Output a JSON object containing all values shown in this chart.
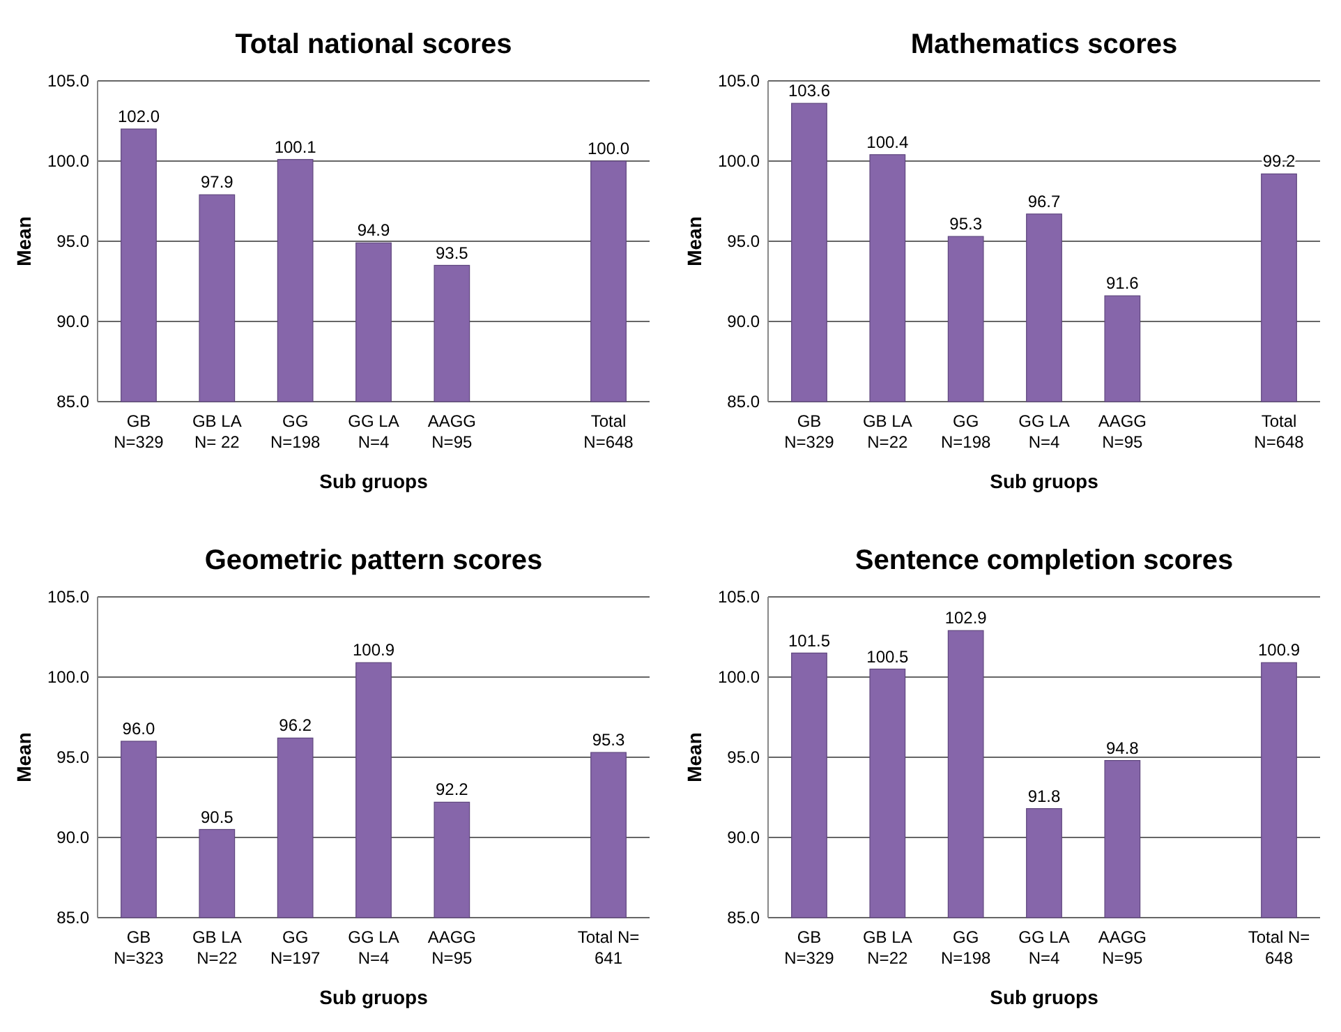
{
  "chart_data": [
    {
      "type": "bar",
      "title": "Total national scores",
      "xlabel": "Sub gruops",
      "ylabel": "Mean",
      "categories": [
        "GB\nN=329",
        "GB LA\nN= 22",
        "GG\nN=198",
        "GG LA\nN=4",
        "AAGG\nN=95",
        null,
        "Total\nN=648"
      ],
      "values": [
        102.0,
        97.9,
        100.1,
        94.9,
        93.5,
        null,
        100.0
      ],
      "value_labels": [
        "102.0",
        "97.9",
        "100.1",
        "94.9",
        "93.5",
        null,
        "100.0"
      ],
      "color": "#8666aa",
      "ylim": [
        85,
        105
      ],
      "yticks": [
        {
          "value": 85,
          "label": "85.0"
        },
        {
          "value": 90,
          "label": "90.0"
        },
        {
          "value": 95,
          "label": "95.0"
        },
        {
          "value": 100,
          "label": "100.0"
        },
        {
          "value": 105,
          "label": "105.0"
        }
      ],
      "grid": "y"
    },
    {
      "type": "bar",
      "title": "Mathematics scores",
      "xlabel": "Sub gruops",
      "ylabel": "Mean",
      "categories": [
        "GB\nN=329",
        "GB LA\nN=22",
        "GG\nN=198",
        "GG  LA\nN=4",
        "AAGG\nN=95",
        null,
        "Total\nN=648"
      ],
      "values": [
        103.6,
        100.4,
        95.3,
        96.7,
        91.6,
        null,
        99.2
      ],
      "value_labels": [
        "103.6",
        "100.4",
        "95.3",
        "96.7",
        "91.6",
        null,
        "99.2"
      ],
      "color": "#8666aa",
      "ylim": [
        85,
        105
      ],
      "yticks": [
        {
          "value": 85,
          "label": "85.0"
        },
        {
          "value": 90,
          "label": "90.0"
        },
        {
          "value": 95,
          "label": "95.0"
        },
        {
          "value": 100,
          "label": "100.0"
        },
        {
          "value": 105,
          "label": "105.0"
        }
      ],
      "grid": "y"
    },
    {
      "type": "bar",
      "title": "Geometric pattern scores",
      "xlabel": "Sub gruops",
      "ylabel": "Mean",
      "categories": [
        "GB\nN=323",
        "GB LA\nN=22",
        "GG\nN=197",
        "GG LA\nN=4",
        "AAGG\nN=95",
        null,
        "Total N=\n641"
      ],
      "values": [
        96.0,
        90.5,
        96.2,
        100.9,
        92.2,
        null,
        95.3
      ],
      "value_labels": [
        "96.0",
        "90.5",
        "96.2",
        "100.9",
        "92.2",
        null,
        "95.3"
      ],
      "color": "#8666aa",
      "ylim": [
        85,
        105
      ],
      "yticks": [
        {
          "value": 85,
          "label": "85.0"
        },
        {
          "value": 90,
          "label": "90.0"
        },
        {
          "value": 95,
          "label": "95.0"
        },
        {
          "value": 100,
          "label": "100.0"
        },
        {
          "value": 105,
          "label": "105.0"
        }
      ],
      "grid": "y"
    },
    {
      "type": "bar",
      "title": "Sentence completion scores",
      "xlabel": "Sub gruops",
      "ylabel": "Mean",
      "categories": [
        "GB\nN=329",
        "GB LA\nN=22",
        "GG\nN=198",
        "GG LA\nN=4",
        "AAGG\nN=95",
        null,
        "Total N=\n648"
      ],
      "values": [
        101.5,
        100.5,
        102.9,
        91.8,
        94.8,
        null,
        100.9
      ],
      "value_labels": [
        "101.5",
        "100.5",
        "102.9",
        "91.8",
        "94.8",
        null,
        "100.9"
      ],
      "color": "#8666aa",
      "ylim": [
        85,
        105
      ],
      "yticks": [
        {
          "value": 85,
          "label": "85.0"
        },
        {
          "value": 90,
          "label": "90.0"
        },
        {
          "value": 95,
          "label": "95.0"
        },
        {
          "value": 100,
          "label": "100.0"
        },
        {
          "value": 105,
          "label": "105.0"
        }
      ],
      "grid": "y"
    }
  ]
}
